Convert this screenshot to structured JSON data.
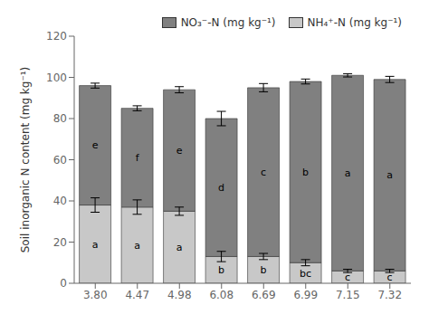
{
  "chart_data": {
    "type": "bar",
    "stacked": true,
    "categories": [
      "3.80",
      "4.47",
      "4.98",
      "6.08",
      "6.69",
      "6.99",
      "7.15",
      "7.32"
    ],
    "series": [
      {
        "name": "NH₄⁺-N (mg kg⁻¹)",
        "color": "#c8c8c8",
        "values": [
          38,
          37,
          35,
          13,
          13,
          10,
          6,
          6
        ],
        "errors": [
          3.5,
          3.5,
          2,
          2.5,
          1.5,
          1.5,
          0.8,
          0.8
        ],
        "annotations": [
          "a",
          "a",
          "a",
          "b",
          "b",
          "bc",
          "c",
          "c"
        ]
      },
      {
        "name": "NO₃⁻-N (mg kg⁻¹)",
        "color": "#808080",
        "values": [
          58,
          48,
          59,
          67,
          82,
          88,
          95,
          93
        ],
        "errors": [
          1.2,
          1.2,
          1.5,
          3.5,
          2.0,
          1.2,
          0.8,
          1.5
        ],
        "annotations": [
          "e",
          "f",
          "e",
          "d",
          "c",
          "b",
          "a",
          "a"
        ]
      }
    ],
    "ylabel": "Soil inorganic N content (mg kg⁻¹)",
    "ylim": [
      0,
      120
    ],
    "yticks": [
      0,
      20,
      40,
      60,
      80,
      100,
      120
    ],
    "grid": false,
    "legend": "upper right"
  }
}
